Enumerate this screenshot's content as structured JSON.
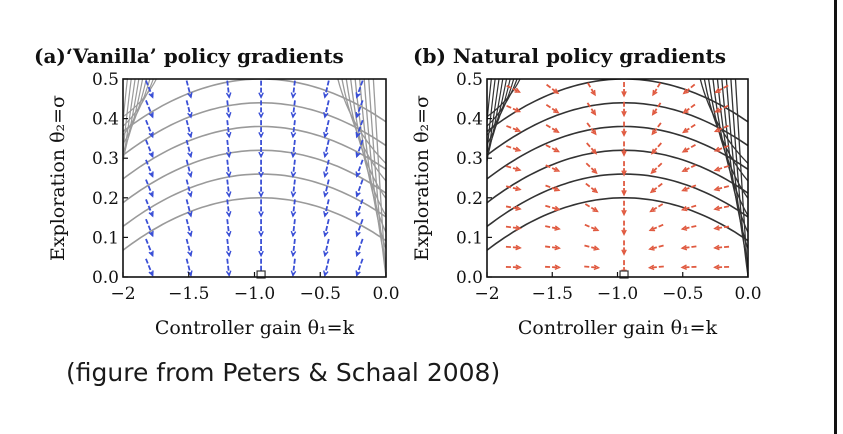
{
  "caption": "(figure from Peters & Schaal 2008)",
  "colors": {
    "vanilla_arrows": "#3a4fd6",
    "natural_arrows": "#e05a40",
    "contours_light": "#9a9a9a",
    "contours_dark": "#333333"
  },
  "chart_data": [
    {
      "type": "quiver",
      "title": "(a)‘Vanilla’ policy gradients",
      "xlabel": "Controller gain θ₁=k",
      "ylabel": "Exploration θ₂=σ",
      "xlim": [
        -2,
        0
      ],
      "ylim": [
        0,
        0.5
      ],
      "xticks": [
        "−2",
        "−1.5",
        "−1.0",
        "−0.5",
        "0.0"
      ],
      "yticks": [
        "0.0",
        "0.1",
        "0.2",
        "0.3",
        "0.4",
        "0.5"
      ],
      "optimum": {
        "x": -0.95,
        "y": 0.0
      },
      "contour_peaks": [
        0.2,
        0.26,
        0.32,
        0.38,
        0.44,
        0.5
      ],
      "arrow_x": [
        -1.8,
        -1.5,
        -1.2,
        -0.95,
        -0.7,
        -0.45,
        -0.2
      ],
      "arrow_y": [
        0.025,
        0.075,
        0.125,
        0.175,
        0.225,
        0.275,
        0.325,
        0.375,
        0.425,
        0.475
      ],
      "arrow_style": "vanilla",
      "arrow_color": "#3a4fd6",
      "contour_color": "#9a9a9a"
    },
    {
      "type": "quiver",
      "title": "(b) Natural policy gradients",
      "xlabel": "Controller gain θ₁=k",
      "ylabel": "Exploration θ₂=σ",
      "xlim": [
        -2,
        0
      ],
      "ylim": [
        0,
        0.5
      ],
      "xticks": [
        "−2",
        "−1.5",
        "−1.0",
        "−0.5",
        "0.0"
      ],
      "yticks": [
        "0.0",
        "0.1",
        "0.2",
        "0.3",
        "0.4",
        "0.5"
      ],
      "optimum": {
        "x": -0.95,
        "y": 0.0
      },
      "contour_peaks": [
        0.2,
        0.26,
        0.32,
        0.38,
        0.44,
        0.5
      ],
      "arrow_x": [
        -1.8,
        -1.5,
        -1.2,
        -0.95,
        -0.7,
        -0.45,
        -0.2
      ],
      "arrow_y": [
        0.025,
        0.075,
        0.125,
        0.175,
        0.225,
        0.275,
        0.325,
        0.375,
        0.425,
        0.475
      ],
      "arrow_style": "natural",
      "arrow_color": "#e05a40",
      "contour_color": "#333333"
    }
  ]
}
